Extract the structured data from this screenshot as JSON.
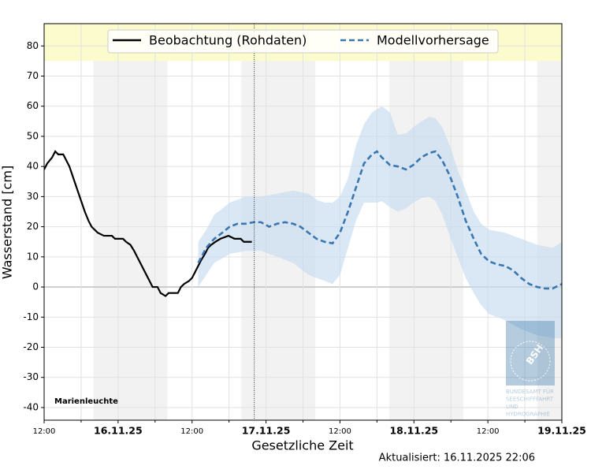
{
  "chart_data": {
    "type": "line",
    "station": "Marienleuchte",
    "x_label": "Gesetzliche Zeit",
    "y_label": "Wasserstand [cm]",
    "updated": "Aktualisiert: 16.11.2025 22:06",
    "update_time": 46.1,
    "xlim": [
      12,
      96
    ],
    "ylim": [
      -44.2,
      87.4
    ],
    "xticks": [
      {
        "value": 12,
        "label": "12:00"
      },
      {
        "value": 24,
        "label": "16.11.25"
      },
      {
        "value": 36,
        "label": "12:00"
      },
      {
        "value": 48,
        "label": "17.11.25"
      },
      {
        "value": 60,
        "label": "12:00"
      },
      {
        "value": 72,
        "label": "18.11.25"
      },
      {
        "value": 84,
        "label": "12:00"
      },
      {
        "value": 96,
        "label": "19.11.25"
      }
    ],
    "x_minor_ticks": [
      18,
      30,
      42,
      54,
      66,
      78,
      90
    ],
    "yticks": [
      -40,
      -30,
      -20,
      -10,
      0,
      10,
      20,
      30,
      40,
      50,
      60,
      70,
      80
    ],
    "grid": true,
    "night_periods": [
      [
        20,
        32
      ],
      [
        44,
        56
      ],
      [
        68,
        80
      ],
      [
        92,
        96
      ]
    ],
    "highlight_band": [
      75,
      87.4
    ],
    "series": [
      {
        "name": "Beobachtung (Rohdaten)",
        "color": "#000000",
        "style": "solid",
        "x": [
          12.0,
          12.5,
          13.3,
          13.8,
          14.3,
          15.1,
          15.6,
          16.1,
          16.6,
          17.1,
          17.6,
          18.1,
          18.6,
          19.2,
          19.7,
          20.2,
          20.7,
          21.7,
          23.0,
          23.5,
          24.8,
          25.3,
          26.0,
          26.6,
          27.1,
          27.6,
          28.1,
          28.6,
          29.1,
          29.6,
          30.4,
          30.9,
          31.7,
          32.2,
          33.7,
          34.2,
          34.7,
          35.5,
          36.0,
          36.5,
          37.0,
          37.5,
          38.1,
          38.6,
          39.1,
          39.8,
          40.6,
          41.9,
          42.9,
          43.9,
          44.4,
          45.7
        ],
        "values": [
          39,
          41,
          43,
          45,
          44,
          44,
          42,
          40,
          37,
          34,
          31,
          28,
          25,
          22,
          20,
          19,
          18,
          17,
          17,
          16,
          16,
          15,
          14,
          12,
          10,
          8,
          6,
          4,
          2,
          0,
          0,
          -2,
          -3,
          -2,
          -2,
          0,
          1,
          2,
          3,
          5,
          7,
          9,
          11,
          13,
          14,
          15,
          16,
          17,
          16,
          16,
          15,
          15
        ]
      },
      {
        "name": "Modellvorhersage",
        "color": "#3a76b0",
        "style": "dashed",
        "band_color": "#c6dbef",
        "x": [
          37.0,
          38.3,
          39.6,
          40.9,
          42.1,
          43.4,
          44.7,
          46.0,
          47.2,
          48.5,
          49.8,
          51.1,
          52.4,
          53.6,
          54.9,
          56.2,
          57.5,
          58.8,
          60.0,
          61.3,
          62.6,
          63.9,
          65.2,
          66.0,
          66.8,
          68.1,
          69.4,
          70.7,
          71.9,
          73.2,
          74.5,
          75.5,
          76.6,
          77.8,
          79.1,
          80.4,
          81.7,
          82.9,
          84.2,
          85.5,
          86.8,
          88.1,
          89.4,
          90.7,
          92.0,
          93.3,
          94.5,
          96
        ],
        "values": [
          8,
          13,
          16,
          18,
          20,
          21,
          21,
          21.5,
          21.5,
          20,
          21,
          21.5,
          21,
          20,
          18,
          16,
          15,
          14.5,
          18,
          25,
          33,
          41,
          44,
          45,
          43,
          40.5,
          40,
          39,
          40.5,
          43,
          44.5,
          45,
          42,
          37,
          30,
          22,
          16,
          11,
          8.5,
          7.5,
          7,
          5.5,
          3,
          1,
          0,
          -0.5,
          -0.5,
          1
        ],
        "lower": [
          0,
          4,
          8,
          9.5,
          11,
          11.5,
          12,
          12,
          12,
          11,
          10,
          9,
          8,
          6,
          4,
          3,
          2,
          1,
          4,
          13,
          22,
          28,
          28,
          28,
          28.5,
          26.5,
          25,
          26,
          28,
          29.5,
          30,
          28.5,
          24,
          17,
          10,
          3,
          -2,
          -6,
          -9,
          -10,
          -11,
          -12.5,
          -14,
          -15,
          -16,
          -16.5,
          -17,
          -17
        ],
        "upper": [
          15,
          19,
          24,
          26,
          28,
          29,
          30,
          30,
          30,
          30.5,
          31,
          31.5,
          32,
          31.5,
          31,
          29,
          28,
          28,
          30,
          36,
          47,
          54,
          58,
          59,
          60,
          58,
          50.5,
          51,
          53,
          55,
          56.5,
          56,
          53,
          47,
          39,
          32,
          25,
          21,
          19,
          18.5,
          18,
          17,
          16,
          15,
          14,
          13.5,
          13,
          15
        ]
      }
    ],
    "logo": {
      "mark": "BSH",
      "lines": [
        "BUNDESAMT FÜR",
        "SEESCHIFFFAHRT",
        "UND",
        "HYDROGRAPHIE"
      ]
    }
  }
}
